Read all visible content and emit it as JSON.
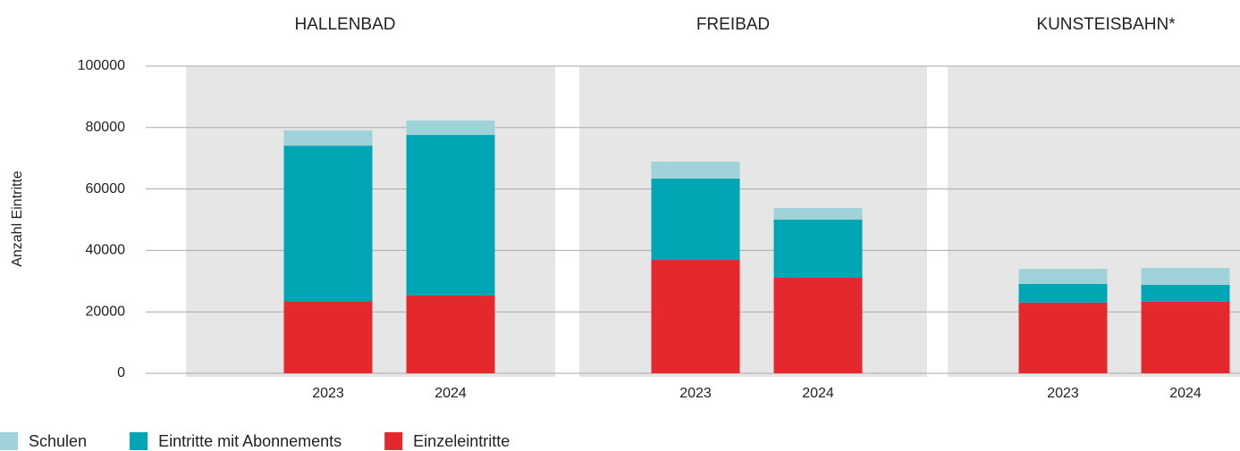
{
  "chart_data": {
    "type": "bar",
    "stacked": true,
    "groups": [
      "HALLENBAD",
      "FREIBAD",
      "KUNSTEISBAHN*"
    ],
    "categories": [
      "2023",
      "2024",
      "2023",
      "2024",
      "2023",
      "2024"
    ],
    "y_label": "Anzahl Eintritte",
    "ylim": [
      0,
      100000
    ],
    "yticks": [
      0,
      20000,
      40000,
      60000,
      80000,
      100000
    ],
    "grid": true,
    "series": [
      {
        "name": "Einzeleintritte",
        "color": "#e3292e",
        "values": [
          23500,
          25300,
          36900,
          31100,
          23000,
          23300
        ]
      },
      {
        "name": "Eintritte mit Abonnements",
        "color": "#00a6b4",
        "values": [
          50600,
          52300,
          26500,
          18900,
          6100,
          5500
        ]
      },
      {
        "name": "Schulen",
        "color": "#9fd3d9",
        "values": [
          5000,
          4700,
          5500,
          3800,
          4900,
          5500
        ]
      }
    ],
    "legend_order": [
      2,
      1,
      0
    ]
  }
}
